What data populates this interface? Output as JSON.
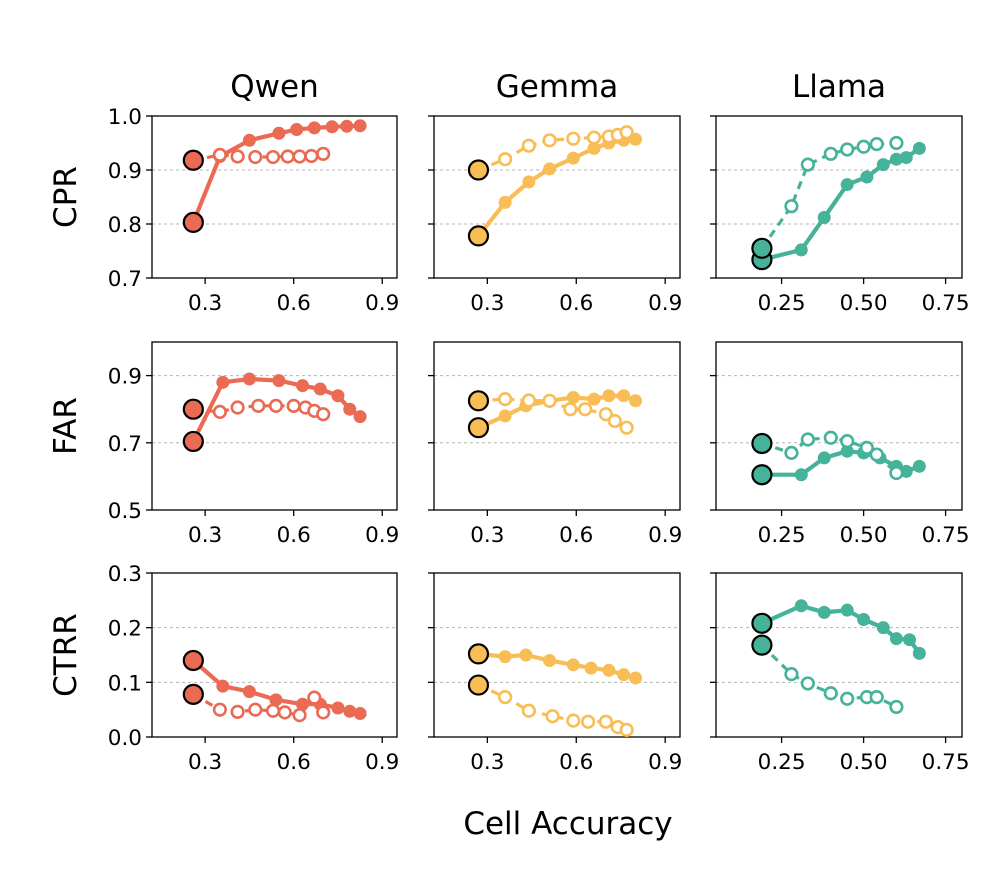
{
  "figure": {
    "columns": [
      "Qwen",
      "Gemma",
      "Llama"
    ],
    "rows": [
      "CPR",
      "FAR",
      "CTRR"
    ],
    "xlabel": "Cell Accuracy",
    "colors": {
      "Qwen": "#ea6a54",
      "Gemma": "#f9bd55",
      "Llama": "#45b39a"
    },
    "xticks": [
      {
        "values": [
          0.3,
          0.6,
          0.9
        ],
        "labels": [
          "0.3",
          "0.6",
          "0.9"
        ]
      },
      {
        "values": [
          0.3,
          0.6,
          0.9
        ],
        "labels": [
          "0.3",
          "0.6",
          "0.9"
        ]
      },
      {
        "values": [
          0.25,
          0.5,
          0.75
        ],
        "labels": [
          "0.25",
          "0.50",
          "0.75"
        ]
      }
    ],
    "yticks": [
      {
        "values": [
          0.7,
          0.8,
          0.9,
          1.0
        ],
        "labels": [
          "0.7",
          "0.8",
          "0.9",
          "1.0"
        ]
      },
      {
        "values": [
          0.5,
          0.7,
          0.9
        ],
        "labels": [
          "0.5",
          "0.7",
          "0.9"
        ]
      },
      {
        "values": [
          0.0,
          0.1,
          0.2,
          0.3
        ],
        "labels": [
          "0.0",
          "0.1",
          "0.2",
          "0.3"
        ]
      }
    ]
  },
  "chart_data": [
    {
      "type": "line",
      "row": "CPR",
      "model": "Qwen",
      "xlim": [
        0.12,
        0.95
      ],
      "ylim": [
        0.7,
        1.0
      ],
      "series": [
        {
          "name": "solid",
          "style": "solid-filled",
          "start": [
            0.26,
            0.803
          ],
          "x": [
            0.35,
            0.45,
            0.55,
            0.61,
            0.67,
            0.73,
            0.78,
            0.825
          ],
          "y": [
            0.925,
            0.955,
            0.968,
            0.975,
            0.978,
            0.98,
            0.981,
            0.982
          ]
        },
        {
          "name": "dashed",
          "style": "dashed-open",
          "start": [
            0.26,
            0.918
          ],
          "x": [
            0.35,
            0.41,
            0.47,
            0.53,
            0.58,
            0.62,
            0.66,
            0.7
          ],
          "y": [
            0.928,
            0.925,
            0.924,
            0.924,
            0.925,
            0.925,
            0.926,
            0.93
          ]
        }
      ]
    },
    {
      "type": "line",
      "row": "CPR",
      "model": "Gemma",
      "xlim": [
        0.12,
        0.95
      ],
      "ylim": [
        0.7,
        1.0
      ],
      "series": [
        {
          "name": "solid",
          "style": "solid-filled",
          "start": [
            0.27,
            0.778
          ],
          "x": [
            0.36,
            0.44,
            0.51,
            0.59,
            0.66,
            0.71,
            0.76,
            0.8
          ],
          "y": [
            0.84,
            0.878,
            0.902,
            0.922,
            0.94,
            0.95,
            0.955,
            0.957
          ]
        },
        {
          "name": "dashed",
          "style": "dashed-open",
          "start": [
            0.27,
            0.9
          ],
          "x": [
            0.36,
            0.44,
            0.51,
            0.59,
            0.66,
            0.71,
            0.74,
            0.77
          ],
          "y": [
            0.92,
            0.945,
            0.955,
            0.958,
            0.96,
            0.962,
            0.965,
            0.97
          ]
        }
      ]
    },
    {
      "type": "line",
      "row": "CPR",
      "model": "Llama",
      "xlim": [
        0.05,
        0.8
      ],
      "ylim": [
        0.7,
        1.0
      ],
      "series": [
        {
          "name": "solid",
          "style": "solid-filled",
          "start": [
            0.19,
            0.734
          ],
          "x": [
            0.31,
            0.38,
            0.45,
            0.51,
            0.56,
            0.6,
            0.63,
            0.67
          ],
          "y": [
            0.752,
            0.812,
            0.873,
            0.887,
            0.91,
            0.92,
            0.923,
            0.94
          ]
        },
        {
          "name": "dashed",
          "style": "dashed-open",
          "start": [
            0.19,
            0.755
          ],
          "x": [
            0.28,
            0.33,
            0.4,
            0.45,
            0.5,
            0.54,
            0.6
          ],
          "y": [
            0.833,
            0.91,
            0.93,
            0.938,
            0.943,
            0.948,
            0.95
          ]
        }
      ]
    },
    {
      "type": "line",
      "row": "FAR",
      "model": "Qwen",
      "xlim": [
        0.12,
        0.95
      ],
      "ylim": [
        0.5,
        1.0
      ],
      "series": [
        {
          "name": "solid",
          "style": "solid-filled",
          "start": [
            0.26,
            0.704
          ],
          "x": [
            0.36,
            0.45,
            0.55,
            0.63,
            0.69,
            0.75,
            0.79,
            0.825
          ],
          "y": [
            0.88,
            0.89,
            0.885,
            0.87,
            0.86,
            0.84,
            0.8,
            0.778
          ]
        },
        {
          "name": "dashed",
          "style": "dashed-open",
          "start": [
            0.26,
            0.8
          ],
          "x": [
            0.35,
            0.41,
            0.48,
            0.54,
            0.6,
            0.64,
            0.67,
            0.7
          ],
          "y": [
            0.792,
            0.805,
            0.81,
            0.81,
            0.81,
            0.805,
            0.795,
            0.785
          ]
        }
      ]
    },
    {
      "type": "line",
      "row": "FAR",
      "model": "Gemma",
      "xlim": [
        0.12,
        0.95
      ],
      "ylim": [
        0.5,
        1.0
      ],
      "series": [
        {
          "name": "solid",
          "style": "solid-filled",
          "start": [
            0.27,
            0.745
          ],
          "x": [
            0.36,
            0.43,
            0.51,
            0.59,
            0.66,
            0.71,
            0.76,
            0.8
          ],
          "y": [
            0.78,
            0.81,
            0.825,
            0.835,
            0.83,
            0.84,
            0.84,
            0.825
          ]
        },
        {
          "name": "dashed",
          "style": "dashed-open",
          "start": [
            0.27,
            0.825
          ],
          "x": [
            0.36,
            0.44,
            0.51,
            0.58,
            0.63,
            0.7,
            0.73,
            0.77
          ],
          "y": [
            0.83,
            0.826,
            0.825,
            0.8,
            0.8,
            0.785,
            0.765,
            0.745
          ]
        }
      ]
    },
    {
      "type": "line",
      "row": "FAR",
      "model": "Llama",
      "xlim": [
        0.05,
        0.8
      ],
      "ylim": [
        0.5,
        1.0
      ],
      "series": [
        {
          "name": "solid",
          "style": "solid-filled",
          "start": [
            0.19,
            0.605
          ],
          "x": [
            0.31,
            0.38,
            0.45,
            0.5,
            0.55,
            0.6,
            0.63,
            0.67
          ],
          "y": [
            0.605,
            0.655,
            0.675,
            0.67,
            0.655,
            0.63,
            0.615,
            0.63
          ]
        },
        {
          "name": "dashed",
          "style": "dashed-open",
          "start": [
            0.19,
            0.698
          ],
          "x": [
            0.28,
            0.33,
            0.4,
            0.45,
            0.51,
            0.54,
            0.6
          ],
          "y": [
            0.67,
            0.71,
            0.715,
            0.705,
            0.685,
            0.665,
            0.61
          ]
        }
      ]
    },
    {
      "type": "line",
      "row": "CTRR",
      "model": "Qwen",
      "xlim": [
        0.12,
        0.95
      ],
      "ylim": [
        0.0,
        0.3
      ],
      "series": [
        {
          "name": "solid",
          "style": "solid-filled",
          "start": [
            0.26,
            0.14
          ],
          "x": [
            0.36,
            0.45,
            0.54,
            0.63,
            0.69,
            0.75,
            0.79,
            0.825
          ],
          "y": [
            0.093,
            0.083,
            0.068,
            0.06,
            0.06,
            0.053,
            0.047,
            0.043
          ]
        },
        {
          "name": "dashed",
          "style": "dashed-open",
          "start": [
            0.26,
            0.078
          ],
          "x": [
            0.35,
            0.41,
            0.47,
            0.53,
            0.57,
            0.62,
            0.67,
            0.7
          ],
          "y": [
            0.05,
            0.046,
            0.05,
            0.048,
            0.045,
            0.04,
            0.072,
            0.045
          ]
        }
      ]
    },
    {
      "type": "line",
      "row": "CTRR",
      "model": "Gemma",
      "xlim": [
        0.12,
        0.95
      ],
      "ylim": [
        0.0,
        0.3
      ],
      "series": [
        {
          "name": "solid",
          "style": "solid-filled",
          "start": [
            0.27,
            0.152
          ],
          "x": [
            0.36,
            0.43,
            0.51,
            0.59,
            0.65,
            0.71,
            0.76,
            0.8
          ],
          "y": [
            0.147,
            0.15,
            0.14,
            0.132,
            0.126,
            0.122,
            0.114,
            0.108
          ]
        },
        {
          "name": "dashed",
          "style": "dashed-open",
          "start": [
            0.27,
            0.095
          ],
          "x": [
            0.36,
            0.44,
            0.52,
            0.59,
            0.64,
            0.7,
            0.74,
            0.77
          ],
          "y": [
            0.073,
            0.048,
            0.038,
            0.03,
            0.028,
            0.028,
            0.018,
            0.013
          ]
        }
      ]
    },
    {
      "type": "line",
      "row": "CTRR",
      "model": "Llama",
      "xlim": [
        0.05,
        0.8
      ],
      "ylim": [
        0.0,
        0.3
      ],
      "series": [
        {
          "name": "solid",
          "style": "solid-filled",
          "start": [
            0.19,
            0.208
          ],
          "x": [
            0.31,
            0.38,
            0.45,
            0.5,
            0.56,
            0.6,
            0.64,
            0.67
          ],
          "y": [
            0.24,
            0.228,
            0.232,
            0.215,
            0.2,
            0.18,
            0.178,
            0.153
          ]
        },
        {
          "name": "dashed",
          "style": "dashed-open",
          "start": [
            0.19,
            0.168
          ],
          "x": [
            0.28,
            0.33,
            0.4,
            0.45,
            0.51,
            0.54,
            0.6
          ],
          "y": [
            0.115,
            0.098,
            0.08,
            0.07,
            0.073,
            0.073,
            0.055
          ]
        }
      ]
    }
  ]
}
